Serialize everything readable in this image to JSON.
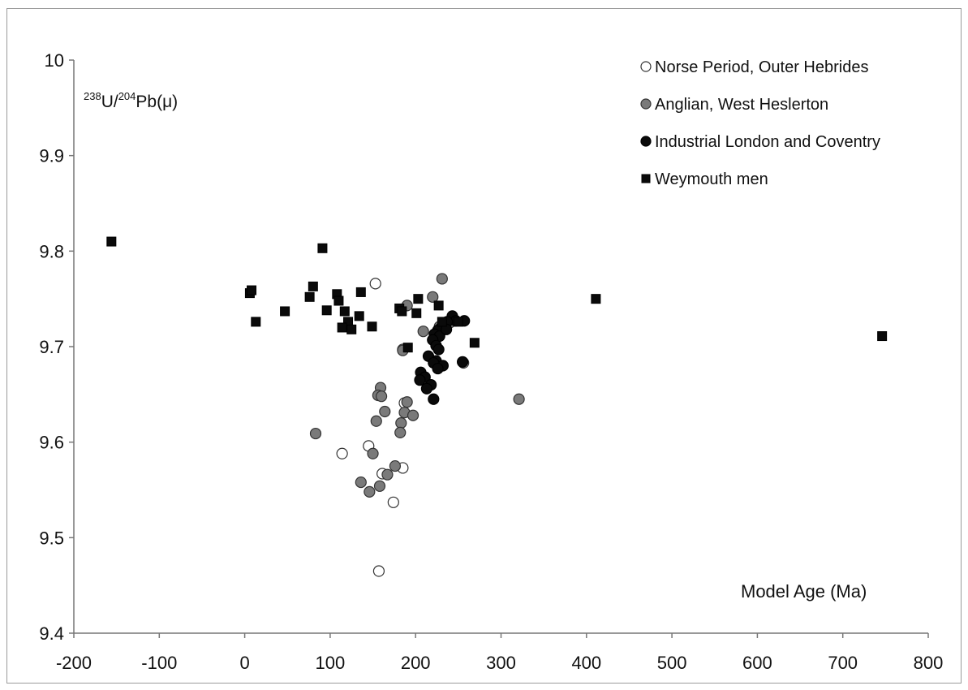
{
  "chart_data": {
    "type": "scatter",
    "xlabel": "Model Age (Ma)",
    "ylabel": {
      "sup1": "238",
      "u": "U/",
      "sup2": "204",
      "pb": "Pb(μ)"
    },
    "xlim": [
      -200,
      800
    ],
    "ylim": [
      9.4,
      10
    ],
    "x_ticks": [
      "-200",
      "-100",
      "0",
      "100",
      "200",
      "300",
      "400",
      "500",
      "600",
      "700",
      "800"
    ],
    "y_ticks": [
      "9.4",
      "9.5",
      "9.6",
      "9.7",
      "9.8",
      "9.9",
      "10"
    ],
    "grid": false,
    "legend_position": "top-right",
    "series": [
      {
        "name": "Norse Period, Outer Hebrides",
        "marker": "circle-open",
        "color": "#ffffff",
        "stroke": "#333333",
        "points": [
          [
            153,
            9.766
          ],
          [
            114,
            9.588
          ],
          [
            145,
            9.596
          ],
          [
            161,
            9.567
          ],
          [
            185,
            9.573
          ],
          [
            174,
            9.537
          ],
          [
            157,
            9.465
          ],
          [
            185,
            9.697
          ],
          [
            187,
            9.641
          ],
          [
            256,
            9.683
          ]
        ]
      },
      {
        "name": "Anglian, West Heslerton",
        "marker": "circle-filled",
        "color": "#7a7a7a",
        "stroke": "#333333",
        "points": [
          [
            231,
            9.771
          ],
          [
            220,
            9.752
          ],
          [
            190,
            9.743
          ],
          [
            209,
            9.716
          ],
          [
            185,
            9.696
          ],
          [
            159,
            9.657
          ],
          [
            156,
            9.649
          ],
          [
            160,
            9.648
          ],
          [
            164,
            9.632
          ],
          [
            154,
            9.622
          ],
          [
            190,
            9.642
          ],
          [
            183,
            9.62
          ],
          [
            187,
            9.631
          ],
          [
            197,
            9.628
          ],
          [
            182,
            9.61
          ],
          [
            83,
            9.609
          ],
          [
            150,
            9.588
          ],
          [
            176,
            9.575
          ],
          [
            167,
            9.566
          ],
          [
            136,
            9.558
          ],
          [
            158,
            9.554
          ],
          [
            146,
            9.548
          ],
          [
            321,
            9.645
          ],
          [
            240,
            9.725
          ],
          [
            228,
            9.721
          ]
        ]
      },
      {
        "name": "Industrial London and Coventry",
        "marker": "circle-filled",
        "color": "#0a0a0a",
        "stroke": "#000000",
        "points": [
          [
            243,
            9.732
          ],
          [
            247,
            9.727
          ],
          [
            257,
            9.727
          ],
          [
            237,
            9.726
          ],
          [
            230,
            9.72
          ],
          [
            226,
            9.717
          ],
          [
            222,
            9.713
          ],
          [
            228,
            9.711
          ],
          [
            220,
            9.707
          ],
          [
            224,
            9.701
          ],
          [
            227,
            9.697
          ],
          [
            215,
            9.69
          ],
          [
            224,
            9.685
          ],
          [
            232,
            9.68
          ],
          [
            221,
            9.683
          ],
          [
            226,
            9.677
          ],
          [
            255,
            9.684
          ],
          [
            206,
            9.673
          ],
          [
            211,
            9.668
          ],
          [
            205,
            9.665
          ],
          [
            218,
            9.66
          ],
          [
            213,
            9.656
          ],
          [
            221,
            9.645
          ],
          [
            236,
            9.718
          ]
        ]
      },
      {
        "name": "Weymouth men",
        "marker": "square",
        "color": "#0a0a0a",
        "stroke": "#000000",
        "points": [
          [
            -156,
            9.81
          ],
          [
            91,
            9.803
          ],
          [
            6,
            9.756
          ],
          [
            8,
            9.759
          ],
          [
            80,
            9.763
          ],
          [
            76,
            9.752
          ],
          [
            108,
            9.755
          ],
          [
            110,
            9.748
          ],
          [
            136,
            9.757
          ],
          [
            47,
            9.737
          ],
          [
            96,
            9.738
          ],
          [
            117,
            9.737
          ],
          [
            134,
            9.732
          ],
          [
            13,
            9.726
          ],
          [
            121,
            9.726
          ],
          [
            114,
            9.72
          ],
          [
            125,
            9.718
          ],
          [
            149,
            9.721
          ],
          [
            181,
            9.74
          ],
          [
            184,
            9.737
          ],
          [
            201,
            9.735
          ],
          [
            203,
            9.75
          ],
          [
            227,
            9.743
          ],
          [
            231,
            9.726
          ],
          [
            250,
            9.726
          ],
          [
            269,
            9.704
          ],
          [
            191,
            9.699
          ],
          [
            411,
            9.75
          ],
          [
            746,
            9.711
          ]
        ]
      }
    ]
  }
}
